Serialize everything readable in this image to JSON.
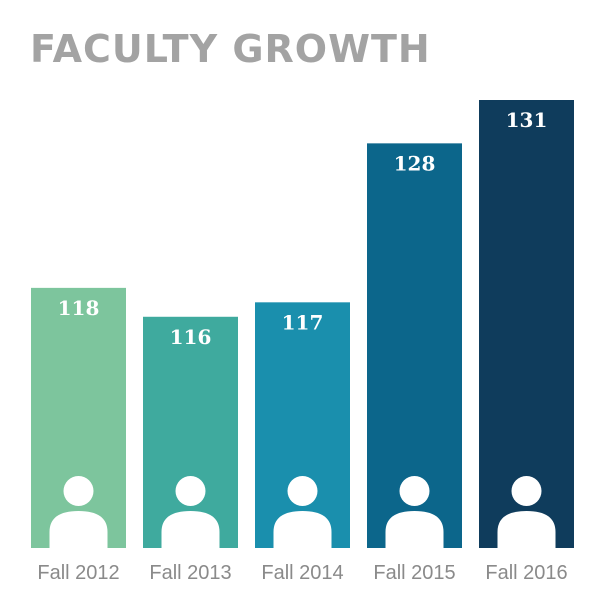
{
  "chart_data": {
    "type": "bar",
    "title": "FACULTY GROWTH",
    "categories": [
      "Fall 2012",
      "Fall 2013",
      "Fall 2014",
      "Fall 2015",
      "Fall 2016"
    ],
    "values": [
      118,
      116,
      117,
      128,
      131
    ],
    "value_labels": [
      "118",
      "116",
      "117",
      "128",
      "131"
    ],
    "colors": [
      "#7dc59d",
      "#3faa9e",
      "#1a8fad",
      "#0c668b",
      "#0f3c5c"
    ],
    "bar_icon": "person-icon",
    "xlabel": "",
    "ylabel": "",
    "legend": "none",
    "grid": false
  }
}
